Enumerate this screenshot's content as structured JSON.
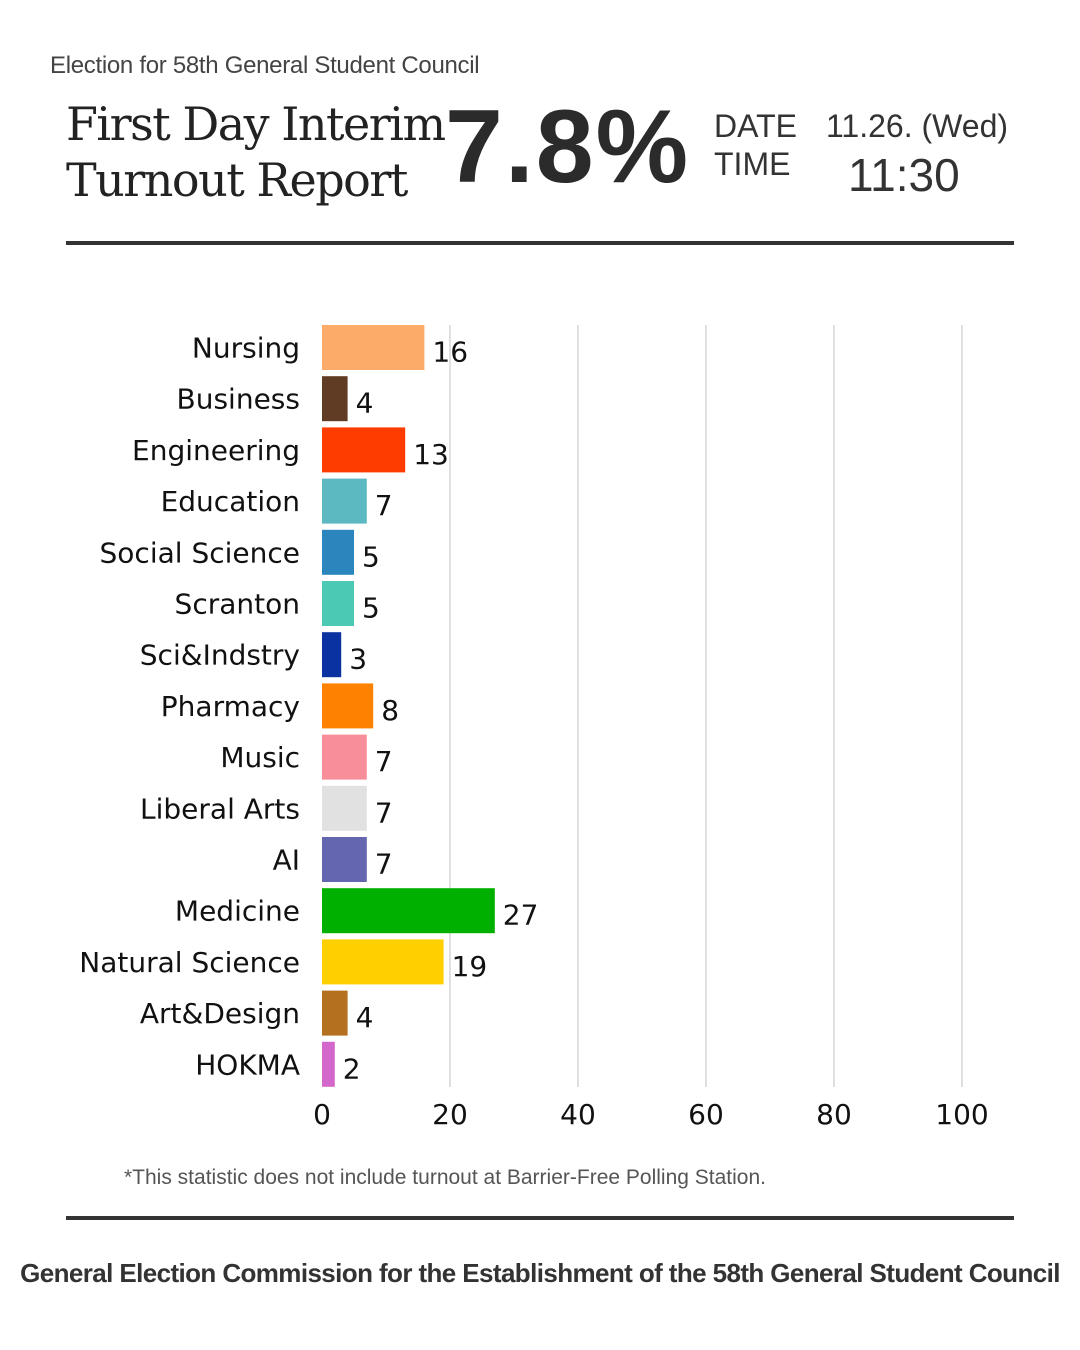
{
  "header": {
    "supertitle": "Election for 58th General Student Council",
    "title": "First Day Interim Turnout Report",
    "turnout": "7.8%",
    "date_label": "DATE",
    "time_label": "TIME",
    "date_value": "11.26. (Wed)",
    "time_value": "11:30"
  },
  "chart_data": {
    "type": "bar",
    "orientation": "horizontal",
    "title": "First Day Interim Turnout Report",
    "xlabel": "",
    "ylabel": "",
    "xlim": [
      0,
      100
    ],
    "xticks": [
      0,
      20,
      40,
      60,
      80,
      100
    ],
    "grid": "vertical",
    "categories": [
      "Nursing",
      "Business",
      "Engineering",
      "Education",
      "Social Science",
      "Scranton",
      "Sci&Indstry",
      "Pharmacy",
      "Music",
      "Liberal Arts",
      "AI",
      "Medicine",
      "Natural Science",
      "Art&Design",
      "HOKMA"
    ],
    "values": [
      16,
      4,
      13,
      7,
      5,
      5,
      3,
      8,
      7,
      7,
      7,
      27,
      19,
      4,
      2
    ],
    "colors": [
      "#FCAC68",
      "#5F3C23",
      "#FF3C00",
      "#5CB9C2",
      "#2B86BE",
      "#4CC9B4",
      "#0A32A0",
      "#FF8100",
      "#F88E9A",
      "#E1E1E1",
      "#6466AF",
      "#00B000",
      "#FFD000",
      "#B3701E",
      "#D467CB"
    ]
  },
  "footnote": "*This statistic does not include turnout at Barrier-Free Polling Station.",
  "footer": "General Election Commission for the Establishment of the 58th General Student Council"
}
